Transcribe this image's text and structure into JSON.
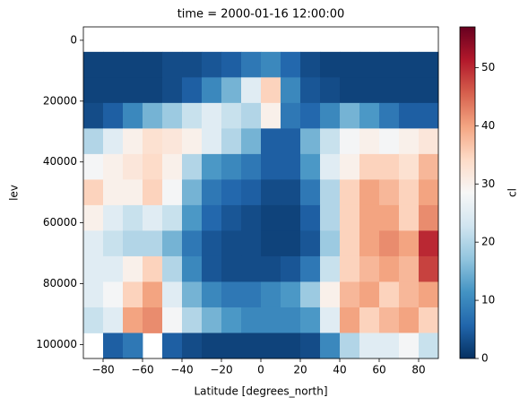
{
  "chart_data": {
    "type": "heatmap",
    "title": "time = 2000-01-16 12:00:00",
    "xlabel": "Latitude [degrees_north]",
    "ylabel": "lev",
    "colorbar_label": "cl",
    "x_edges": [
      -90,
      -80,
      -70,
      -60,
      -50,
      -40,
      -30,
      -20,
      -10,
      0,
      10,
      20,
      30,
      40,
      50,
      60,
      70,
      80,
      90
    ],
    "y_edges": [
      3800,
      12200,
      20600,
      29000,
      37400,
      45800,
      54200,
      62600,
      71000,
      79400,
      87800,
      96200,
      104600
    ],
    "values": [
      [
        2,
        2,
        2,
        2,
        3,
        3,
        4,
        5,
        8,
        10,
        6,
        3,
        2,
        2,
        2,
        2,
        2,
        2
      ],
      [
        2,
        2,
        2,
        2,
        3,
        5,
        10,
        15,
        25,
        35,
        10,
        4,
        3,
        2,
        2,
        2,
        2,
        2
      ],
      [
        3,
        5,
        10,
        15,
        18,
        22,
        25,
        22,
        20,
        30,
        8,
        6,
        10,
        15,
        12,
        8,
        5,
        5
      ],
      [
        20,
        25,
        30,
        33,
        32,
        30,
        25,
        20,
        15,
        5,
        5,
        15,
        22,
        28,
        30,
        28,
        30,
        32
      ],
      [
        28,
        30,
        32,
        34,
        30,
        20,
        12,
        10,
        8,
        5,
        5,
        12,
        25,
        30,
        35,
        35,
        33,
        38
      ],
      [
        35,
        30,
        30,
        35,
        28,
        15,
        8,
        6,
        5,
        3,
        3,
        8,
        20,
        35,
        40,
        38,
        35,
        40
      ],
      [
        30,
        25,
        22,
        25,
        22,
        12,
        6,
        4,
        3,
        2,
        2,
        5,
        20,
        35,
        40,
        40,
        35,
        42
      ],
      [
        25,
        22,
        20,
        20,
        15,
        8,
        4,
        3,
        3,
        2,
        2,
        4,
        18,
        35,
        40,
        42,
        40,
        50
      ],
      [
        25,
        25,
        30,
        35,
        20,
        10,
        4,
        3,
        3,
        3,
        4,
        8,
        22,
        35,
        38,
        40,
        38,
        48
      ],
      [
        25,
        28,
        35,
        40,
        25,
        15,
        10,
        8,
        8,
        10,
        12,
        18,
        30,
        38,
        40,
        35,
        38,
        40
      ],
      [
        22,
        25,
        40,
        42,
        28,
        20,
        15,
        12,
        10,
        10,
        10,
        12,
        25,
        40,
        35,
        38,
        40,
        35
      ],
      [
        null,
        5,
        8,
        null,
        5,
        3,
        2,
        2,
        2,
        2,
        2,
        3,
        10,
        20,
        25,
        25,
        28,
        22
      ]
    ],
    "xlim": [
      -90,
      90
    ],
    "xticks": [
      {
        "value": -80,
        "label": "−80"
      },
      {
        "value": -60,
        "label": "−60"
      },
      {
        "value": -40,
        "label": "−40"
      },
      {
        "value": -20,
        "label": "−20"
      },
      0,
      20,
      40,
      60,
      80
    ],
    "ylim": [
      104600,
      -4400
    ],
    "yticks": [
      0,
      20000,
      40000,
      60000,
      80000,
      100000
    ],
    "clim": [
      0,
      57
    ],
    "cticks": [
      0,
      10,
      20,
      30,
      40,
      50
    ],
    "colormap": [
      "#053061",
      "#2166ac",
      "#4393c3",
      "#92c5de",
      "#d1e5f0",
      "#f7f7f7",
      "#fddbc7",
      "#f4a582",
      "#d6604d",
      "#b2182b",
      "#67001f"
    ]
  }
}
